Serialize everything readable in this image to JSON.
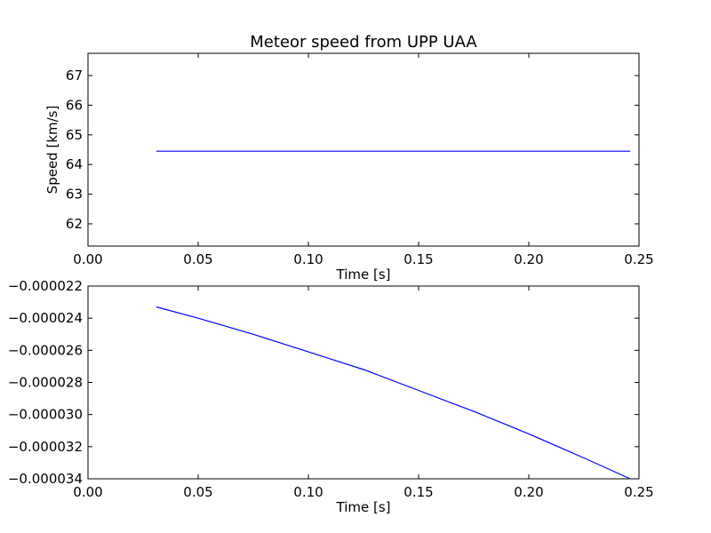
{
  "chart_data": [
    {
      "type": "line",
      "title": "Meteor speed from  UPP UAA",
      "xlabel": "Time [s]",
      "ylabel": "Speed [km/s]",
      "xlim": [
        0.0,
        0.25
      ],
      "ylim": [
        61.25,
        67.75
      ],
      "xticks": [
        0.0,
        0.05,
        0.1,
        0.15,
        0.2,
        0.25
      ],
      "xtick_labels": [
        "0.00",
        "0.05",
        "0.10",
        "0.15",
        "0.20",
        "0.25"
      ],
      "yticks": [
        62,
        63,
        64,
        65,
        66,
        67
      ],
      "ytick_labels": [
        "62",
        "63",
        "64",
        "65",
        "66",
        "67"
      ],
      "series_color": "#0000ff",
      "grid": false,
      "x": [
        0.031,
        0.246
      ],
      "y": [
        64.45,
        64.45
      ]
    },
    {
      "type": "line",
      "title": "",
      "xlabel": "Time [s]",
      "ylabel": "",
      "xlim": [
        0.0,
        0.25
      ],
      "ylim": [
        -3.4e-05,
        -2.2e-05
      ],
      "xticks": [
        0.0,
        0.05,
        0.1,
        0.15,
        0.2,
        0.25
      ],
      "xtick_labels": [
        "0.00",
        "0.05",
        "0.10",
        "0.15",
        "0.20",
        "0.25"
      ],
      "yticks": [
        -2.2e-05,
        -2.4e-05,
        -2.6e-05,
        -2.8e-05,
        -3e-05,
        -3.2e-05,
        -3.4e-05
      ],
      "ytick_labels": [
        "−0.000022",
        "−0.000024",
        "−0.000026",
        "−0.000028",
        "−0.000030",
        "−0.000032",
        "−0.000034"
      ],
      "series_color": "#0000ff",
      "grid": false,
      "x": [
        0.031,
        0.05,
        0.075,
        0.1,
        0.125,
        0.15,
        0.175,
        0.2,
        0.225,
        0.246
      ],
      "y": [
        -2.33e-05,
        -2.4e-05,
        -2.5e-05,
        -2.61e-05,
        -2.72e-05,
        -2.85e-05,
        -2.98e-05,
        -3.12e-05,
        -3.27e-05,
        -3.4e-05
      ]
    }
  ]
}
